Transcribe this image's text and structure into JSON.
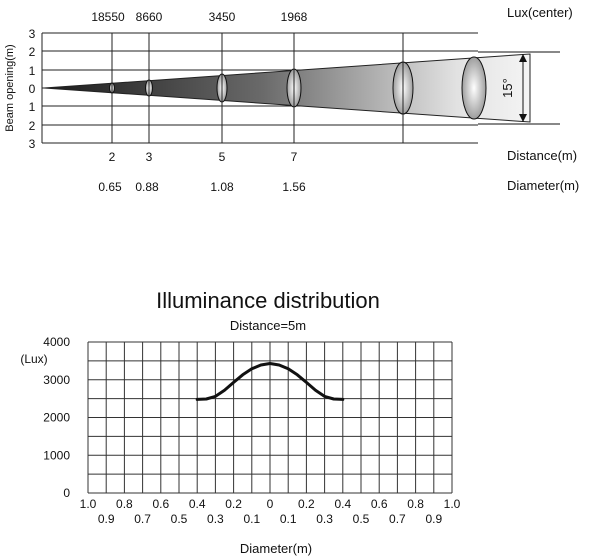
{
  "beam": {
    "y_label": "Beam opening(m)",
    "y_ticks": [
      "3",
      "2",
      "1",
      "0",
      "1",
      "2",
      "3"
    ],
    "lux_label": "Lux(center)",
    "distance_label": "Distance(m)",
    "diameter_label": "Diameter(m)",
    "angle_label": "15°",
    "points": [
      {
        "lux": "18550",
        "distance": "2",
        "diameter": "0.65"
      },
      {
        "lux": "8660",
        "distance": "3",
        "diameter": "0.88"
      },
      {
        "lux": "3450",
        "distance": "5",
        "diameter": "1.08"
      },
      {
        "lux": "1968",
        "distance": "7",
        "diameter": "1.56"
      }
    ]
  },
  "chart_data": {
    "type": "line",
    "title": "Illuminance distribution",
    "subtitle": "Distance=5m",
    "xlabel": "Diameter(m)",
    "ylabel": "(Lux)",
    "ylim": [
      0,
      4000
    ],
    "xlim": [
      -1.0,
      1.0
    ],
    "grid": true,
    "y_ticks": [
      "0",
      "1000",
      "2000",
      "3000",
      "4000"
    ],
    "x_ticks_top": [
      "1.0",
      "0.8",
      "0.6",
      "0.4",
      "0.2",
      "0",
      "0.2",
      "0.4",
      "0.6",
      "0.8",
      "1.0"
    ],
    "x_ticks_bottom": [
      "0.9",
      "0.7",
      "0.5",
      "0.3",
      "0.1",
      "0.1",
      "0.3",
      "0.5",
      "0.7",
      "0.9"
    ],
    "series": [
      {
        "x": [
          -0.4,
          -0.35,
          -0.3,
          -0.25,
          -0.2,
          -0.15,
          -0.1,
          -0.05,
          0,
          0.05,
          0.1,
          0.15,
          0.2,
          0.25,
          0.3,
          0.35,
          0.4
        ],
        "values": [
          2480,
          2490,
          2560,
          2720,
          2930,
          3130,
          3290,
          3390,
          3430,
          3390,
          3290,
          3130,
          2930,
          2720,
          2560,
          2490,
          2480
        ],
        "color": "#111111"
      }
    ]
  }
}
